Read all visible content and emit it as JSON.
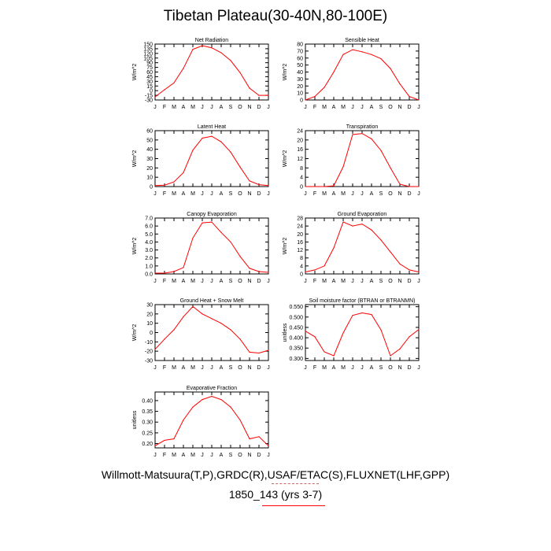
{
  "title": "Tibetan Plateau(30-40N,80-100E)",
  "footer": {
    "line1": "Willmott-Matsuura(T,P),GRDC(R),USAF/ETAC(S),FLUXNET(LHF,GPP)",
    "line2": "1850_143 (yrs 3-7)"
  },
  "colors": {
    "line": "#ff0000",
    "axis": "#000000"
  },
  "chart_data": [
    {
      "type": "line",
      "title": "Net Radiation",
      "ylabel": "W/m^2",
      "categories": [
        "J",
        "F",
        "M",
        "A",
        "M",
        "J",
        "J",
        "A",
        "S",
        "O",
        "N",
        "D",
        "J"
      ],
      "ylim": [
        -30,
        150
      ],
      "yticks": [
        -30,
        -15,
        0,
        15,
        30,
        45,
        60,
        75,
        90,
        105,
        120,
        135,
        150
      ],
      "values": [
        -20,
        3,
        25,
        72,
        133,
        145,
        138,
        122,
        97,
        58,
        8,
        -15,
        -15
      ]
    },
    {
      "type": "line",
      "title": "Sensible Heat",
      "ylabel": "W/m^2",
      "categories": [
        "J",
        "F",
        "M",
        "A",
        "M",
        "J",
        "J",
        "A",
        "S",
        "O",
        "N",
        "D",
        "J"
      ],
      "ylim": [
        0,
        80
      ],
      "yticks": [
        0,
        10,
        20,
        30,
        40,
        50,
        60,
        70,
        80
      ],
      "values": [
        0,
        5,
        18,
        40,
        65,
        72,
        69,
        65,
        59,
        45,
        23,
        5,
        0
      ]
    },
    {
      "type": "line",
      "title": "Latent Heat",
      "ylabel": "W/m^2",
      "categories": [
        "J",
        "F",
        "M",
        "A",
        "M",
        "J",
        "J",
        "A",
        "S",
        "O",
        "N",
        "D",
        "J"
      ],
      "ylim": [
        0,
        60
      ],
      "yticks": [
        0,
        10,
        20,
        30,
        40,
        50,
        60
      ],
      "values": [
        1,
        1.5,
        5,
        15,
        39,
        52,
        54,
        48,
        37,
        21,
        6,
        2,
        1
      ]
    },
    {
      "type": "line",
      "title": "Transpiration",
      "ylabel": "W/m^2",
      "categories": [
        "J",
        "F",
        "M",
        "A",
        "M",
        "J",
        "J",
        "A",
        "S",
        "O",
        "N",
        "D",
        "J"
      ],
      "ylim": [
        0,
        24
      ],
      "yticks": [
        0,
        4,
        8,
        12,
        16,
        20,
        24
      ],
      "values": [
        0,
        0,
        0,
        0.3,
        8.5,
        22.3,
        22.8,
        20.5,
        15.5,
        8,
        1,
        0,
        0
      ]
    },
    {
      "type": "line",
      "title": "Canopy Evaporation",
      "ylabel": "W/m^2",
      "categories": [
        "J",
        "F",
        "M",
        "A",
        "M",
        "J",
        "J",
        "A",
        "S",
        "O",
        "N",
        "D",
        "J"
      ],
      "ylim": [
        0,
        7
      ],
      "yticks": [
        0.0,
        1.0,
        2.0,
        3.0,
        4.0,
        5.0,
        6.0,
        7.0
      ],
      "ydecimals": 1,
      "values": [
        0.1,
        0.1,
        0.3,
        0.8,
        4.5,
        6.4,
        6.5,
        5.2,
        4,
        2.2,
        0.7,
        0.3,
        0.2
      ]
    },
    {
      "type": "line",
      "title": "Ground Evaporation",
      "ylabel": "W/m^2",
      "categories": [
        "J",
        "F",
        "M",
        "A",
        "M",
        "J",
        "J",
        "A",
        "S",
        "O",
        "N",
        "D",
        "J"
      ],
      "ylim": [
        0,
        28
      ],
      "yticks": [
        0,
        4,
        8,
        12,
        16,
        20,
        24,
        28
      ],
      "values": [
        1,
        2,
        4,
        13,
        26,
        24,
        25,
        22,
        17,
        11,
        5,
        2,
        1
      ]
    },
    {
      "type": "line",
      "title": "Ground Heat + Snow Melt",
      "ylabel": "W/m^2",
      "categories": [
        "J",
        "F",
        "M",
        "A",
        "M",
        "J",
        "J",
        "A",
        "S",
        "O",
        "N",
        "D",
        "J"
      ],
      "ylim": [
        -30,
        30
      ],
      "yticks": [
        -30,
        -20,
        -10,
        0,
        10,
        20,
        30
      ],
      "values": [
        -18,
        -7,
        3,
        17,
        28,
        20,
        15,
        10,
        3,
        -7,
        -21,
        -22,
        -19
      ]
    },
    {
      "type": "line",
      "title": "Soil moisture factor (BTRAN or BTRANMN)",
      "ylabel": "unitless",
      "categories": [
        "J",
        "F",
        "M",
        "A",
        "M",
        "J",
        "J",
        "A",
        "S",
        "O",
        "N",
        "D",
        "J"
      ],
      "ylim": [
        0.29,
        0.56
      ],
      "yticks": [
        0.3,
        0.35,
        0.4,
        0.45,
        0.5,
        0.55
      ],
      "ydecimals": 3,
      "values": [
        0.432,
        0.405,
        0.332,
        0.313,
        0.423,
        0.508,
        0.52,
        0.512,
        0.438,
        0.313,
        0.346,
        0.405,
        0.44
      ]
    },
    {
      "type": "line",
      "title": "Evaporative Fraction",
      "ylabel": "unitless",
      "categories": [
        "J",
        "F",
        "M",
        "A",
        "M",
        "J",
        "J",
        "A",
        "S",
        "O",
        "N",
        "D",
        "J"
      ],
      "ylim": [
        0.18,
        0.44
      ],
      "yticks": [
        0.2,
        0.25,
        0.3,
        0.35,
        0.4
      ],
      "ydecimals": 2,
      "values": [
        0.19,
        0.215,
        0.222,
        0.31,
        0.37,
        0.405,
        0.42,
        0.405,
        0.37,
        0.31,
        0.222,
        0.232,
        0.19
      ]
    }
  ]
}
